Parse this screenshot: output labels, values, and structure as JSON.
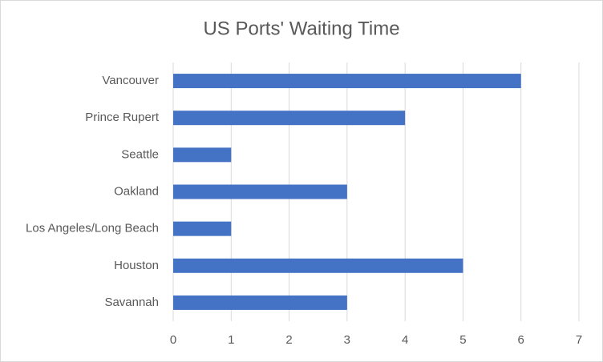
{
  "chart_data": {
    "type": "bar",
    "orientation": "horizontal",
    "title": "US Ports' Waiting Time",
    "categories": [
      "Vancouver",
      "Prince Rupert",
      "Seattle",
      "Oakland",
      "Los Angeles/Long Beach",
      "Houston",
      "Savannah"
    ],
    "values": [
      6,
      4,
      1,
      3,
      1,
      5,
      3
    ],
    "color": "#4472c4",
    "xlim": [
      0,
      7
    ],
    "xticks": [
      0,
      1,
      2,
      3,
      4,
      5,
      6,
      7
    ],
    "grid": true
  }
}
